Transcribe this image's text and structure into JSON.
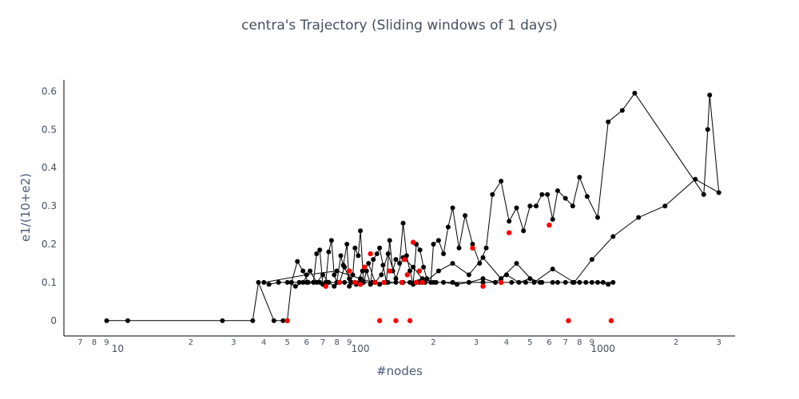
{
  "chart_data": {
    "type": "scatter",
    "mode": "lines+markers",
    "title": "centra's Trajectory (Sliding windows of 1 days)",
    "xlabel": "#nodes",
    "ylabel": "e1/(10+e2)",
    "x_scale": "log",
    "xlim": [
      6,
      3500
    ],
    "ylim": [
      -0.04,
      0.63
    ],
    "x_major_ticks": [
      10,
      100,
      1000
    ],
    "x_minor_ticks": [
      {
        "v": 7,
        "label": "7"
      },
      {
        "v": 8,
        "label": "8"
      },
      {
        "v": 9,
        "label": "9"
      },
      {
        "v": 20,
        "label": "2"
      },
      {
        "v": 30,
        "label": "3"
      },
      {
        "v": 40,
        "label": "4"
      },
      {
        "v": 50,
        "label": "5"
      },
      {
        "v": 60,
        "label": "6"
      },
      {
        "v": 70,
        "label": "7"
      },
      {
        "v": 80,
        "label": "8"
      },
      {
        "v": 90,
        "label": "9"
      },
      {
        "v": 200,
        "label": "2"
      },
      {
        "v": 300,
        "label": "3"
      },
      {
        "v": 400,
        "label": "4"
      },
      {
        "v": 500,
        "label": "5"
      },
      {
        "v": 600,
        "label": "6"
      },
      {
        "v": 700,
        "label": "7"
      },
      {
        "v": 800,
        "label": "8"
      },
      {
        "v": 900,
        "label": "9"
      },
      {
        "v": 2000,
        "label": "2"
      },
      {
        "v": 3000,
        "label": "3"
      }
    ],
    "y_ticks": [
      0,
      0.1,
      0.2,
      0.3,
      0.4,
      0.5,
      0.6
    ],
    "grid": false,
    "colors": {
      "line": "#000000",
      "marker": "#000000",
      "highlight": "#ff0000",
      "title": "#444f5e",
      "axis_title": "#4a5a78"
    },
    "series": [
      {
        "name": "trajectory",
        "x": [
          9,
          11,
          27,
          36,
          38,
          44,
          48,
          50,
          52,
          55,
          58,
          61,
          64,
          66,
          68,
          70,
          72,
          74,
          76,
          78,
          80,
          83,
          85,
          88,
          90,
          93,
          95,
          98,
          100,
          103,
          106,
          110,
          113,
          117,
          120,
          124,
          128,
          132,
          136,
          140,
          145,
          150,
          155,
          160,
          165,
          170,
          176,
          182,
          188,
          195,
          200,
          210,
          220,
          230,
          240,
          255,
          270,
          290,
          310,
          330,
          350,
          380,
          410,
          440,
          470,
          500,
          530,
          560,
          590,
          620,
          650,
          700,
          750,
          800,
          860,
          950,
          1050,
          1200,
          1350,
          2600,
          2700,
          2750,
          3000,
          2400,
          1800,
          1400,
          1100,
          900,
          760,
          620,
          520,
          440,
          380,
          320,
          280,
          240,
          210,
          185,
          165,
          150,
          140,
          130,
          122,
          115,
          108,
          102,
          96,
          90,
          86,
          82,
          78,
          74,
          70,
          66,
          62,
          58,
          54,
          50,
          46,
          42,
          40,
          60,
          80,
          100,
          120,
          140,
          160,
          180,
          200,
          220,
          250,
          280,
          320,
          360,
          400,
          450,
          500,
          560,
          620,
          700,
          800,
          900,
          1000,
          1100,
          1050,
          950,
          850,
          750,
          650,
          550,
          480,
          420,
          360,
          320,
          280,
          240,
          205,
          175,
          150,
          130,
          112,
          100,
          92,
          86,
          80,
          74,
          68,
          64,
          60,
          56,
          52
        ],
        "y": [
          0,
          0,
          0,
          0,
          0.1,
          0,
          0,
          0,
          0.1,
          0.155,
          0.13,
          0.1,
          0.1,
          0.175,
          0.185,
          0.095,
          0.1,
          0.18,
          0.21,
          0.12,
          0.1,
          0.17,
          0.145,
          0.2,
          0.09,
          0.12,
          0.19,
          0.17,
          0.235,
          0.1,
          0.13,
          0.095,
          0.16,
          0.175,
          0.19,
          0.145,
          0.1,
          0.21,
          0.13,
          0.16,
          0.15,
          0.255,
          0.17,
          0.13,
          0.095,
          0.2,
          0.185,
          0.14,
          0.11,
          0.1,
          0.2,
          0.21,
          0.175,
          0.245,
          0.295,
          0.19,
          0.275,
          0.2,
          0.15,
          0.19,
          0.33,
          0.365,
          0.26,
          0.295,
          0.235,
          0.3,
          0.3,
          0.33,
          0.33,
          0.265,
          0.34,
          0.32,
          0.3,
          0.375,
          0.325,
          0.27,
          0.52,
          0.55,
          0.595,
          0.33,
          0.5,
          0.59,
          0.335,
          0.37,
          0.3,
          0.27,
          0.22,
          0.16,
          0.1,
          0.135,
          0.1,
          0.15,
          0.11,
          0.165,
          0.12,
          0.15,
          0.13,
          0.1,
          0.14,
          0.165,
          0.11,
          0.175,
          0.12,
          0.1,
          0.15,
          0.13,
          0.095,
          0.11,
          0.14,
          0.1,
          0.09,
          0.1,
          0.12,
          0.1,
          0.13,
          0.1,
          0.09,
          0.1,
          0.1,
          0.095,
          0.1,
          0.12,
          0.13,
          0.11,
          0.095,
          0.1,
          0.1,
          0.11,
          0.1,
          0.1,
          0.095,
          0.1,
          0.11,
          0.1,
          0.12,
          0.1,
          0.11,
          0.1,
          0.1,
          0.1,
          0.1,
          0.1,
          0.1,
          0.1,
          0.095,
          0.1,
          0.1,
          0.1,
          0.1,
          0.1,
          0.1,
          0.1,
          0.1,
          0.1,
          0.1,
          0.1,
          0.1,
          0.1,
          0.1,
          0.1,
          0.1,
          0.1,
          0.1,
          0.1,
          0.1,
          0.1,
          0.1,
          0.1,
          0.1,
          0.1,
          0.1
        ],
        "highlight_x": [
          50,
          72,
          82,
          90,
          95,
          100,
          104,
          110,
          115,
          120,
          125,
          132,
          140,
          148,
          152,
          156,
          160,
          165,
          170,
          175,
          180,
          290,
          320,
          380,
          410,
          600,
          720,
          1080
        ],
        "highlight_y": [
          0,
          0.09,
          0.1,
          0.13,
          0.1,
          0.095,
          0.14,
          0.175,
          0.1,
          0,
          0.1,
          0.13,
          0,
          0.1,
          0.16,
          0.12,
          0,
          0.205,
          0.1,
          0.13,
          0.1,
          0.19,
          0.09,
          0.1,
          0.23,
          0.25,
          0,
          0
        ]
      }
    ]
  }
}
